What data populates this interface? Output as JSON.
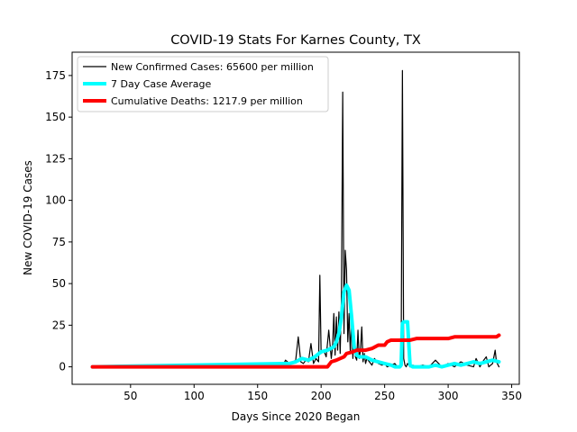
{
  "chart_data": {
    "type": "line",
    "title": "COVID-19 Stats For Karnes County, TX",
    "xlabel": "Days Since 2020 Began",
    "ylabel": "New COVID-19 Cases",
    "xlim": [
      4,
      356
    ],
    "ylim": [
      -10.5,
      189
    ],
    "xticks": [
      50,
      100,
      150,
      200,
      250,
      300,
      350
    ],
    "yticks": [
      0,
      25,
      50,
      75,
      100,
      125,
      150,
      175
    ],
    "grid": false,
    "legend_position": "top-left",
    "series": [
      {
        "name": "New Confirmed Cases: 65600 per million",
        "color": "#000000",
        "x": [
          20,
          100,
          165,
          168,
          170,
          172,
          175,
          178,
          180,
          182,
          184,
          186,
          188,
          190,
          192,
          194,
          196,
          198,
          199,
          200,
          202,
          204,
          206,
          208,
          209,
          210,
          211,
          212,
          213,
          214,
          215,
          216,
          217,
          218,
          219,
          220,
          221,
          222,
          223,
          224,
          225,
          226,
          227,
          228,
          229,
          230,
          231,
          232,
          233,
          234,
          235,
          236,
          238,
          240,
          242,
          245,
          248,
          250,
          252,
          255,
          258,
          260,
          262,
          263,
          264,
          265,
          266,
          267,
          268,
          270,
          272,
          275,
          280,
          285,
          290,
          295,
          300,
          305,
          310,
          315,
          320,
          322,
          325,
          328,
          330,
          332,
          335,
          337,
          338,
          340
        ],
        "y": [
          0,
          0,
          0,
          2,
          1,
          4,
          2,
          3,
          4,
          18,
          3,
          2,
          4,
          3,
          14,
          2,
          5,
          3,
          55,
          8,
          10,
          6,
          22,
          5,
          12,
          32,
          7,
          30,
          10,
          33,
          8,
          42,
          165,
          20,
          70,
          58,
          15,
          32,
          8,
          28,
          5,
          20,
          6,
          4,
          22,
          5,
          10,
          24,
          3,
          8,
          2,
          5,
          3,
          1,
          5,
          2,
          1,
          2,
          0,
          1,
          2,
          0,
          1,
          5,
          178,
          5,
          1,
          0,
          2,
          0,
          1,
          0,
          1,
          0,
          4,
          0,
          2,
          0,
          3,
          1,
          0,
          5,
          0,
          4,
          6,
          0,
          2,
          10,
          3,
          0
        ]
      },
      {
        "name": "7 Day Case Average",
        "color": "#00ffff",
        "x": [
          20,
          175,
          180,
          185,
          190,
          195,
          200,
          205,
          210,
          212,
          214,
          216,
          218,
          220,
          222,
          224,
          226,
          228,
          230,
          235,
          240,
          245,
          250,
          255,
          258,
          260,
          262,
          263,
          264,
          265,
          266,
          268,
          270,
          272,
          275,
          280,
          285,
          290,
          295,
          300,
          305,
          310,
          315,
          320,
          325,
          330,
          335,
          340
        ],
        "y": [
          0,
          2,
          3,
          5,
          4,
          6,
          9,
          10,
          12,
          15,
          20,
          30,
          45,
          49,
          46,
          30,
          12,
          7,
          6,
          6,
          4,
          3,
          2,
          1,
          0,
          0,
          0,
          1,
          26,
          27,
          27,
          27,
          1,
          0,
          0,
          0,
          0,
          1,
          0,
          1,
          2,
          1,
          2,
          3,
          2,
          3,
          4,
          3
        ]
      },
      {
        "name": "Cumulative Deaths: 1217.9 per million",
        "color": "#ff0000",
        "x": [
          20,
          100,
          150,
          205,
          208,
          212,
          215,
          218,
          220,
          225,
          228,
          230,
          235,
          240,
          245,
          250,
          252,
          255,
          258,
          260,
          265,
          270,
          275,
          280,
          285,
          290,
          295,
          300,
          305,
          310,
          320,
          330,
          335,
          338,
          340
        ],
        "y": [
          0,
          0,
          0,
          0,
          3,
          4,
          5,
          6,
          8,
          9,
          10,
          10,
          10,
          11,
          13,
          13,
          15,
          16,
          16,
          16,
          16,
          16,
          17,
          17,
          17,
          17,
          17,
          17,
          18,
          18,
          18,
          18,
          18,
          18,
          19
        ]
      }
    ]
  }
}
